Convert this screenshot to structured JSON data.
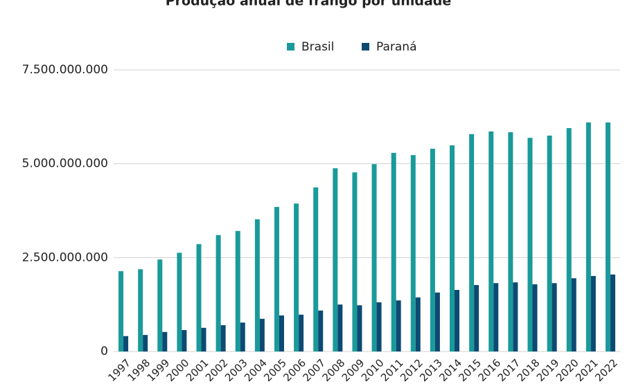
{
  "chart_data": {
    "type": "bar",
    "title": "Produção anual de frango por unidade",
    "categories": [
      "1997",
      "1998",
      "1999",
      "2000",
      "2001",
      "2002",
      "2003",
      "2004",
      "2005",
      "2006",
      "2007",
      "2008",
      "2009",
      "2010",
      "2011",
      "2012",
      "2013",
      "2014",
      "2015",
      "2016",
      "2017",
      "2018",
      "2019",
      "2020",
      "2021",
      "2022"
    ],
    "series": [
      {
        "name": "Brasil",
        "color": "#1a9a9a",
        "values": [
          2140000000,
          2190000000,
          2450000000,
          2630000000,
          2860000000,
          3100000000,
          3210000000,
          3520000000,
          3850000000,
          3940000000,
          4370000000,
          4880000000,
          4770000000,
          4990000000,
          5290000000,
          5230000000,
          5400000000,
          5490000000,
          5790000000,
          5860000000,
          5840000000,
          5690000000,
          5750000000,
          5950000000,
          6100000000,
          6100000000
        ]
      },
      {
        "name": "Paraná",
        "color": "#0d4a73",
        "values": [
          410000000,
          440000000,
          520000000,
          570000000,
          630000000,
          700000000,
          770000000,
          870000000,
          960000000,
          980000000,
          1090000000,
          1250000000,
          1230000000,
          1310000000,
          1360000000,
          1440000000,
          1570000000,
          1640000000,
          1770000000,
          1820000000,
          1840000000,
          1790000000,
          1820000000,
          1950000000,
          2010000000,
          2050000000
        ]
      }
    ],
    "ylim": [
      0,
      7500000000
    ],
    "yticks": [
      0,
      {
        "value": 2500000000,
        "label": "2.500.000.000"
      },
      {
        "value": 5000000000,
        "label": "5.000.000.000"
      },
      {
        "value": 7500000000,
        "label": "7.500.000.000"
      }
    ],
    "grid": true,
    "legend": "top"
  }
}
